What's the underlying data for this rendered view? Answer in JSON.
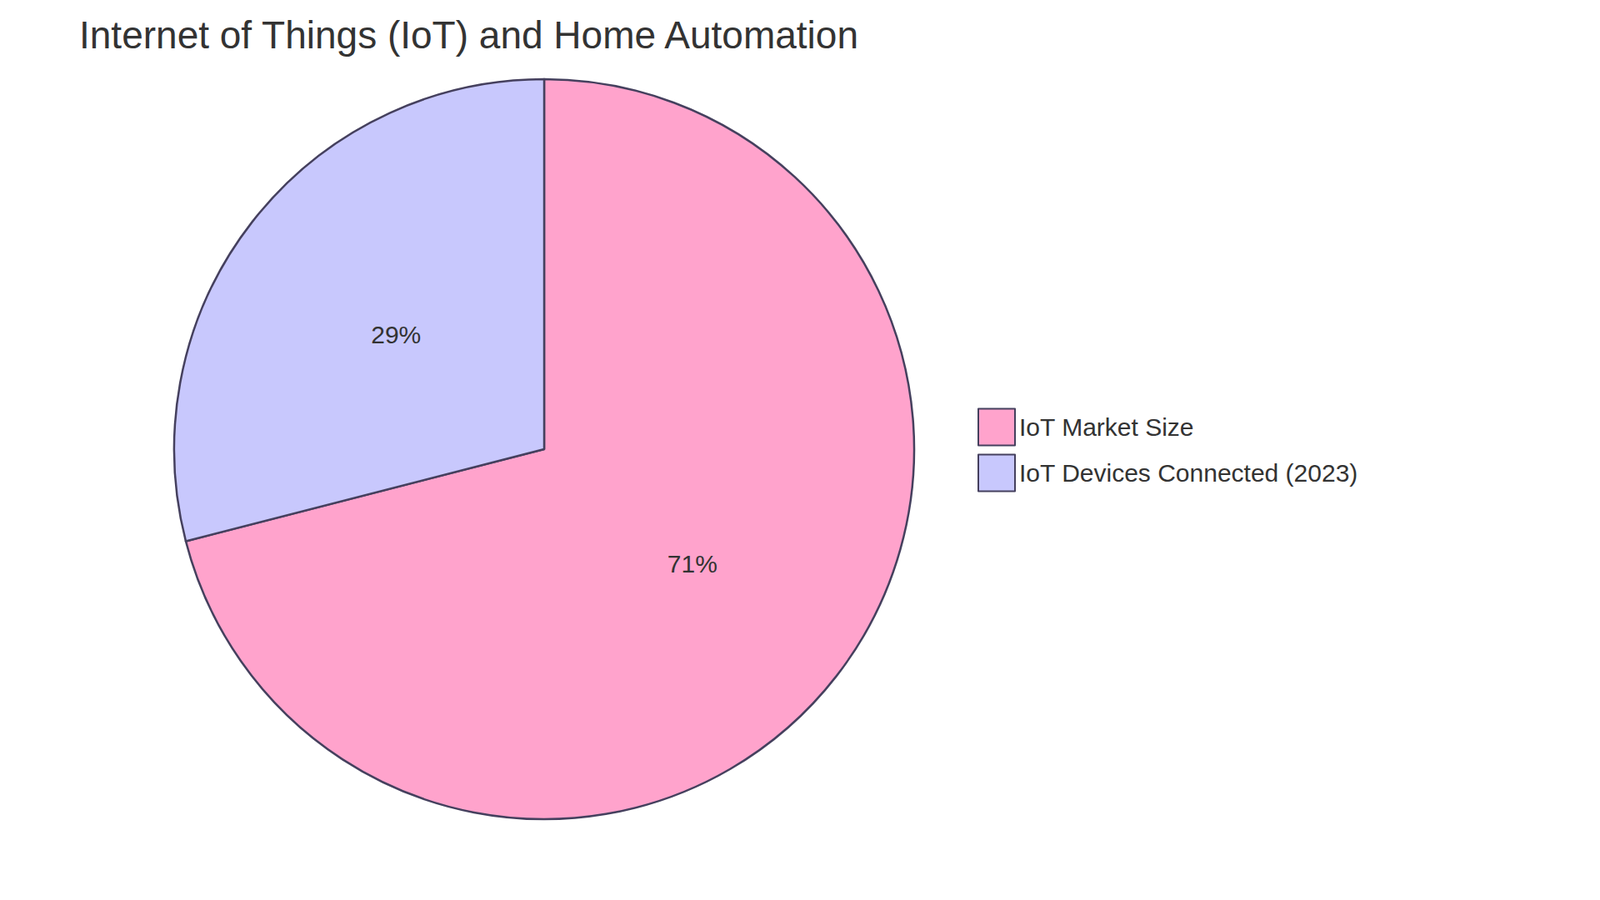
{
  "chart_data": {
    "type": "pie",
    "title": "Internet of Things (IoT) and Home Automation",
    "categories": [
      "IoT Market Size",
      "IoT Devices Connected (2023)"
    ],
    "values": [
      71,
      29
    ],
    "value_labels": [
      "71%",
      "29%"
    ],
    "colors": [
      "#ffa3cc",
      "#c8c8fd"
    ],
    "legend": "right",
    "data_labels": true
  }
}
